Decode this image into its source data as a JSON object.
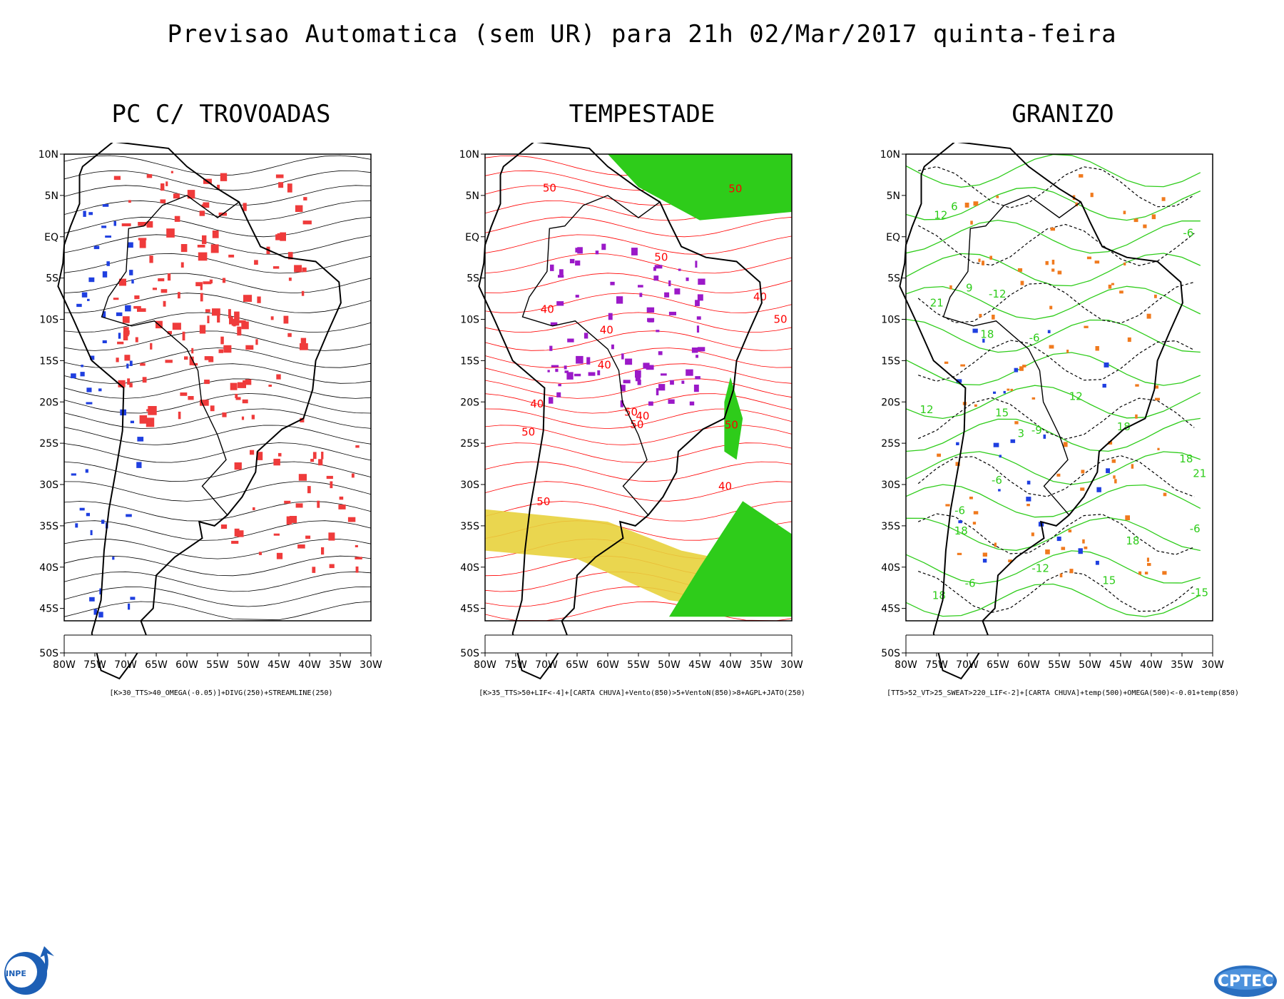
{
  "title": "Previsao Automatica (sem UR) para 21h 02/Mar/2017 quinta-feira",
  "lat_labels": [
    "10N",
    "5N",
    "EQ",
    "5S",
    "10S",
    "15S",
    "20S",
    "25S",
    "30S",
    "35S",
    "40S",
    "45S",
    "50S"
  ],
  "lon_labels": [
    "80W",
    "75W",
    "70W",
    "65W",
    "60W",
    "55W",
    "50W",
    "45W",
    "40W",
    "35W",
    "30W"
  ],
  "panels": [
    {
      "title": "PC C/ TROVOADAS",
      "caption": "[K>30_TTS>40_OMEGA(-0.05)]+DIVG(250)+STREAMLINE(250)",
      "stream_color": "#000000",
      "fill_colors": [
        "#ef3b3b",
        "#1f3fe0"
      ]
    },
    {
      "title": "TEMPESTADE",
      "caption": "[K>35_TTS>50+LIF<-4]+[CARTA CHUVA]+Vento(850)>5+VentoN(850)>8+AGPL+JATO(250)",
      "stream_color": "#ff0000",
      "fill_colors": [
        "#2ecc1a",
        "#e8d13c",
        "#9b19c8"
      ],
      "contour_labels": [
        "50",
        "50",
        "50",
        "50",
        "40",
        "40",
        "50",
        "40",
        "40",
        "50",
        "50",
        "40",
        "40",
        "40",
        "50",
        "50"
      ]
    },
    {
      "title": "GRANIZO",
      "caption": "[TT5>52_VT>25_SWEAT>220_LIF<-2]+[CARTA CHUVA]+temp(500)+OMEGA(500)<-0.01+temp(850)",
      "stream_color": "#2ecc1a",
      "fill_colors": [
        "#2ecc1a",
        "#f07a1e",
        "#000000",
        "#1f3fe0"
      ],
      "contour_labels": [
        "18",
        "18",
        "18",
        "18",
        "21",
        "21",
        "18",
        "15",
        "12",
        "12",
        "9",
        "6",
        "3",
        "12",
        "15",
        "18",
        "-6",
        "-6",
        "-6",
        "-6",
        "-6",
        "-12",
        "-15",
        "-12",
        "-9",
        "-6"
      ]
    }
  ],
  "logos": {
    "left": "INPE",
    "right": "CPTEC"
  }
}
